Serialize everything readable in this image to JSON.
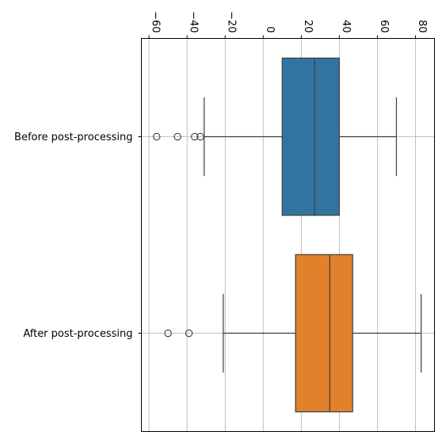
{
  "chart_data": {
    "type": "box",
    "orientation": "horizontal",
    "title": "",
    "xlabel": "",
    "ylabel": "",
    "x_axis_position": "top",
    "x_tick_labels_rotated": true,
    "xlim": [
      -64,
      90
    ],
    "x_ticks": [
      -60,
      -40,
      -20,
      0,
      20,
      40,
      60,
      80
    ],
    "x_tick_labels": [
      "−60",
      "−40",
      "−20",
      "0",
      "20",
      "40",
      "60",
      "80"
    ],
    "grid": true,
    "categories": [
      "Before post-processing",
      "After post-processing"
    ],
    "boxes": [
      {
        "category": "Before post-processing",
        "color": "#3274a1",
        "whisker_low": -31,
        "q1": 10,
        "median": 27,
        "q3": 40,
        "whisker_high": 70,
        "outliers": [
          -56,
          -45,
          -36,
          -33
        ]
      },
      {
        "category": "After post-processing",
        "color": "#e1812c",
        "whisker_low": -21,
        "q1": 17,
        "median": 35,
        "q3": 47,
        "whisker_high": 83,
        "outliers": [
          -50,
          -39
        ]
      }
    ]
  }
}
